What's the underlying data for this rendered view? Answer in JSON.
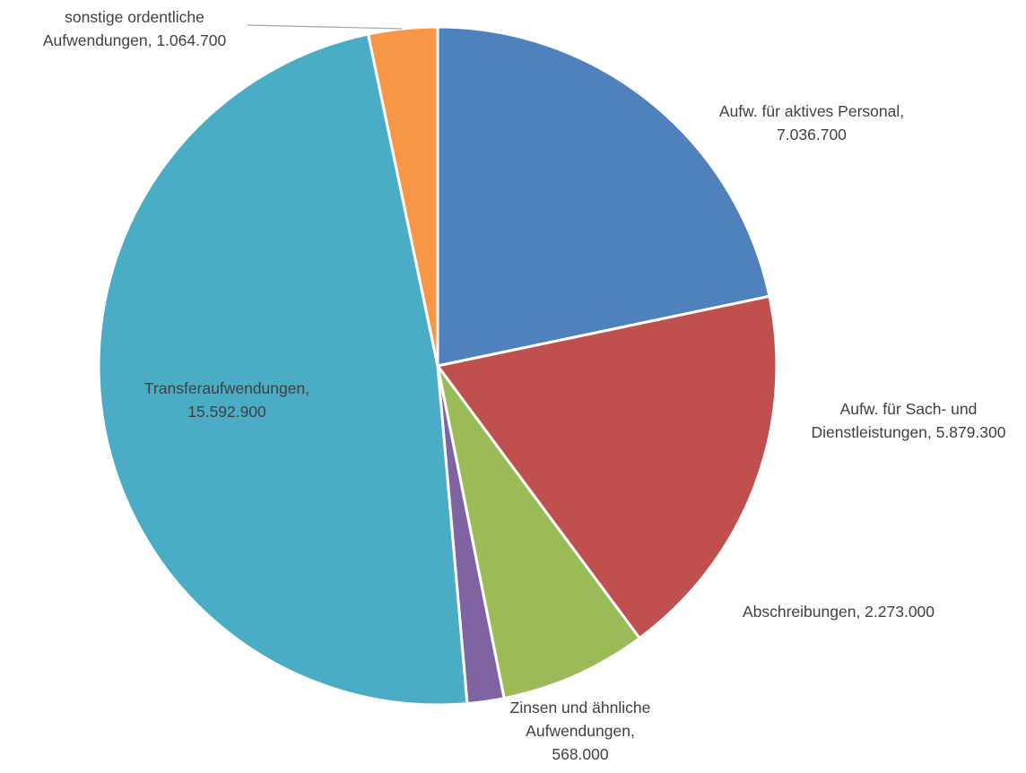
{
  "chart_data": {
    "type": "pie",
    "title": "",
    "slices": [
      {
        "label": "Aufw. für aktives Personal",
        "value": 7036700,
        "value_text": "7.036.700",
        "color": "#4F81BD"
      },
      {
        "label": "Aufw. für Sach- und Dienstleistungen",
        "value": 5879300,
        "value_text": "5.879.300",
        "color": "#C0504D"
      },
      {
        "label": "Abschreibungen",
        "value": 2273000,
        "value_text": "2.273.000",
        "color": "#9BBB59"
      },
      {
        "label": "Zinsen und ähnliche Aufwendungen",
        "value": 568000,
        "value_text": "568.000",
        "color": "#8064A2"
      },
      {
        "label": "Transferaufwendungen",
        "value": 15592900,
        "value_text": "15.592.900",
        "color": "#4BACC6"
      },
      {
        "label": "sonstige ordentliche Aufwendungen",
        "value": 1064700,
        "value_text": "1.064.700",
        "color": "#F79646"
      }
    ],
    "labels": [
      {
        "line1": "Aufw. für aktives Personal,",
        "line2": "7.036.700"
      },
      {
        "line1": "Aufw. für Sach- und",
        "line2": "Dienstleistungen, 5.879.300"
      },
      {
        "line1": "Abschreibungen, 2.273.000"
      },
      {
        "line1": "Zinsen und ähnliche",
        "line2": "Aufwendungen,",
        "line3": "568.000"
      },
      {
        "line1": "Transferaufwendungen,",
        "line2": "15.592.900"
      },
      {
        "line1": "sonstige ordentliche",
        "line2": "Aufwendungen, 1.064.700"
      }
    ],
    "leader_line_color": "#A6A6A6",
    "slice_border_color": "#FFFFFF"
  }
}
